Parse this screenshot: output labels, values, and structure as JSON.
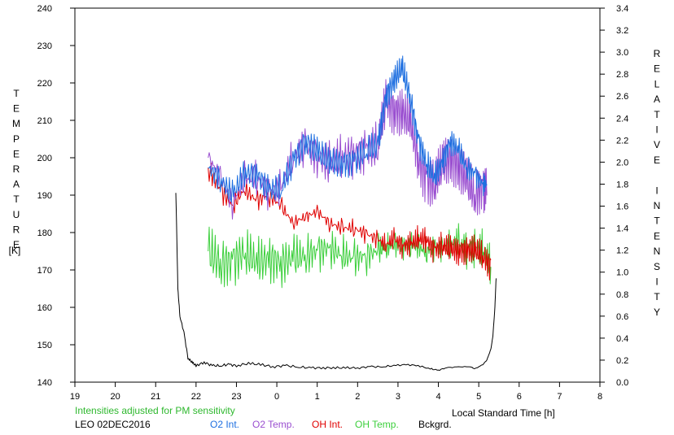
{
  "chart_data": {
    "type": "line",
    "x_ticks": [
      "19",
      "20",
      "21",
      "22",
      "23",
      "0",
      "1",
      "2",
      "3",
      "4",
      "5",
      "6",
      "7",
      "8"
    ],
    "xlim": [
      19,
      32
    ],
    "xlabel": "Local Standard Time [h]",
    "ylabel_left": "TEMPERATURE",
    "ylabel_left_unit": "[K]",
    "ylim_left": [
      140,
      240
    ],
    "yticks_left": [
      140,
      150,
      160,
      170,
      180,
      190,
      200,
      210,
      220,
      230,
      240
    ],
    "ylabel_right": "RELATIVE INTENSITY",
    "ylim_right": [
      0.0,
      3.4
    ],
    "yticks_right": [
      "0.0",
      "0.2",
      "0.4",
      "0.6",
      "0.8",
      "1.0",
      "1.2",
      "1.4",
      "1.6",
      "1.8",
      "2.0",
      "2.2",
      "2.4",
      "2.6",
      "2.8",
      "3.0",
      "3.2",
      "3.4"
    ],
    "grid": false,
    "series": [
      {
        "name": "O2 Int.",
        "color": "#1e6fe0",
        "axis": "right",
        "points": [
          [
            22.3,
            1.95
          ],
          [
            22.6,
            1.85
          ],
          [
            22.9,
            1.7
          ],
          [
            23.2,
            1.9
          ],
          [
            23.5,
            1.9
          ],
          [
            23.8,
            1.75
          ],
          [
            24.1,
            1.75
          ],
          [
            24.4,
            2.0
          ],
          [
            24.7,
            2.2
          ],
          [
            25.0,
            2.1
          ],
          [
            25.3,
            2.0
          ],
          [
            25.6,
            2.0
          ],
          [
            25.9,
            2.0
          ],
          [
            26.2,
            2.1
          ],
          [
            26.5,
            2.15
          ],
          [
            26.7,
            2.6
          ],
          [
            26.9,
            2.75
          ],
          [
            27.1,
            2.85
          ],
          [
            27.3,
            2.6
          ],
          [
            27.5,
            2.2
          ],
          [
            27.7,
            2.0
          ],
          [
            27.9,
            1.85
          ],
          [
            28.1,
            2.0
          ],
          [
            28.3,
            2.2
          ],
          [
            28.5,
            2.1
          ],
          [
            28.7,
            1.95
          ],
          [
            28.9,
            1.9
          ],
          [
            29.1,
            1.8
          ],
          [
            29.2,
            1.8
          ]
        ]
      },
      {
        "name": "O2 Temp.",
        "color": "#9a4fd0",
        "axis": "left",
        "points": [
          [
            22.3,
            200
          ],
          [
            22.6,
            195
          ],
          [
            22.9,
            188
          ],
          [
            23.2,
            194
          ],
          [
            23.5,
            195
          ],
          [
            23.8,
            191
          ],
          [
            24.1,
            192
          ],
          [
            24.4,
            200
          ],
          [
            24.7,
            203
          ],
          [
            25.0,
            201
          ],
          [
            25.3,
            198
          ],
          [
            25.6,
            200
          ],
          [
            25.9,
            201
          ],
          [
            26.2,
            202
          ],
          [
            26.5,
            203
          ],
          [
            26.7,
            215
          ],
          [
            26.9,
            213
          ],
          [
            27.1,
            212
          ],
          [
            27.3,
            210
          ],
          [
            27.5,
            200
          ],
          [
            27.7,
            194
          ],
          [
            27.9,
            193
          ],
          [
            28.1,
            198
          ],
          [
            28.3,
            200
          ],
          [
            28.5,
            198
          ],
          [
            28.7,
            194
          ],
          [
            28.9,
            190
          ],
          [
            29.1,
            192
          ],
          [
            29.2,
            193
          ]
        ]
      },
      {
        "name": "OH Int.",
        "color": "#e00000",
        "axis": "right",
        "points": [
          [
            22.3,
            1.95
          ],
          [
            22.6,
            1.75
          ],
          [
            22.9,
            1.6
          ],
          [
            23.2,
            1.75
          ],
          [
            23.5,
            1.65
          ],
          [
            23.8,
            1.7
          ],
          [
            24.1,
            1.6
          ],
          [
            24.4,
            1.45
          ],
          [
            24.7,
            1.5
          ],
          [
            25.0,
            1.55
          ],
          [
            25.3,
            1.45
          ],
          [
            25.6,
            1.4
          ],
          [
            25.9,
            1.4
          ],
          [
            26.2,
            1.35
          ],
          [
            26.5,
            1.3
          ],
          [
            26.7,
            1.25
          ],
          [
            26.9,
            1.3
          ],
          [
            27.1,
            1.25
          ],
          [
            27.3,
            1.25
          ],
          [
            27.5,
            1.3
          ],
          [
            27.7,
            1.3
          ],
          [
            27.9,
            1.2
          ],
          [
            28.1,
            1.25
          ],
          [
            28.3,
            1.2
          ],
          [
            28.5,
            1.2
          ],
          [
            28.7,
            1.2
          ],
          [
            28.9,
            1.2
          ],
          [
            29.1,
            1.15
          ],
          [
            29.3,
            1.05
          ]
        ]
      },
      {
        "name": "OH Temp.",
        "color": "#3ccf3c",
        "axis": "left",
        "points": [
          [
            22.3,
            175
          ],
          [
            22.6,
            172
          ],
          [
            22.9,
            172
          ],
          [
            23.2,
            175
          ],
          [
            23.5,
            172
          ],
          [
            23.8,
            173
          ],
          [
            24.1,
            172
          ],
          [
            24.4,
            173
          ],
          [
            24.7,
            174
          ],
          [
            25.0,
            175
          ],
          [
            25.3,
            176
          ],
          [
            25.6,
            174
          ],
          [
            25.9,
            173
          ],
          [
            26.2,
            174
          ],
          [
            26.5,
            175
          ],
          [
            26.7,
            176
          ],
          [
            26.9,
            177
          ],
          [
            27.1,
            176
          ],
          [
            27.3,
            177
          ],
          [
            27.5,
            176
          ],
          [
            27.7,
            175
          ],
          [
            27.9,
            176
          ],
          [
            28.1,
            176
          ],
          [
            28.3,
            177
          ],
          [
            28.5,
            177
          ],
          [
            28.7,
            176
          ],
          [
            28.9,
            176
          ],
          [
            29.1,
            175
          ],
          [
            29.3,
            171
          ]
        ]
      },
      {
        "name": "Bckgrd.",
        "color": "#000000",
        "axis": "right",
        "points": [
          [
            21.5,
            1.72
          ],
          [
            21.55,
            0.85
          ],
          [
            21.6,
            0.6
          ],
          [
            21.7,
            0.45
          ],
          [
            21.8,
            0.22
          ],
          [
            21.9,
            0.18
          ],
          [
            22.0,
            0.15
          ],
          [
            22.2,
            0.18
          ],
          [
            22.4,
            0.15
          ],
          [
            22.6,
            0.15
          ],
          [
            22.8,
            0.16
          ],
          [
            23.0,
            0.15
          ],
          [
            23.3,
            0.17
          ],
          [
            23.6,
            0.16
          ],
          [
            23.9,
            0.14
          ],
          [
            24.2,
            0.15
          ],
          [
            24.5,
            0.14
          ],
          [
            24.8,
            0.13
          ],
          [
            25.1,
            0.13
          ],
          [
            25.4,
            0.13
          ],
          [
            25.7,
            0.13
          ],
          [
            26.0,
            0.13
          ],
          [
            26.3,
            0.14
          ],
          [
            26.6,
            0.14
          ],
          [
            26.9,
            0.15
          ],
          [
            27.2,
            0.16
          ],
          [
            27.5,
            0.15
          ],
          [
            27.8,
            0.12
          ],
          [
            28.0,
            0.11
          ],
          [
            28.2,
            0.13
          ],
          [
            28.5,
            0.14
          ],
          [
            28.8,
            0.14
          ],
          [
            28.9,
            0.12
          ],
          [
            29.1,
            0.16
          ],
          [
            29.2,
            0.2
          ],
          [
            29.3,
            0.3
          ],
          [
            29.35,
            0.42
          ],
          [
            29.4,
            0.68
          ],
          [
            29.43,
            0.95
          ]
        ]
      }
    ]
  },
  "footer": {
    "note": "Intensities adjusted for PM sensitivity",
    "station": "LEO 02DEC2016"
  },
  "colors": {
    "o2_int": "#1e6fe0",
    "o2_temp": "#9a4fd0",
    "oh_int": "#e00000",
    "oh_temp": "#3ccf3c",
    "background": "#000000",
    "note": "#2eb82e"
  }
}
